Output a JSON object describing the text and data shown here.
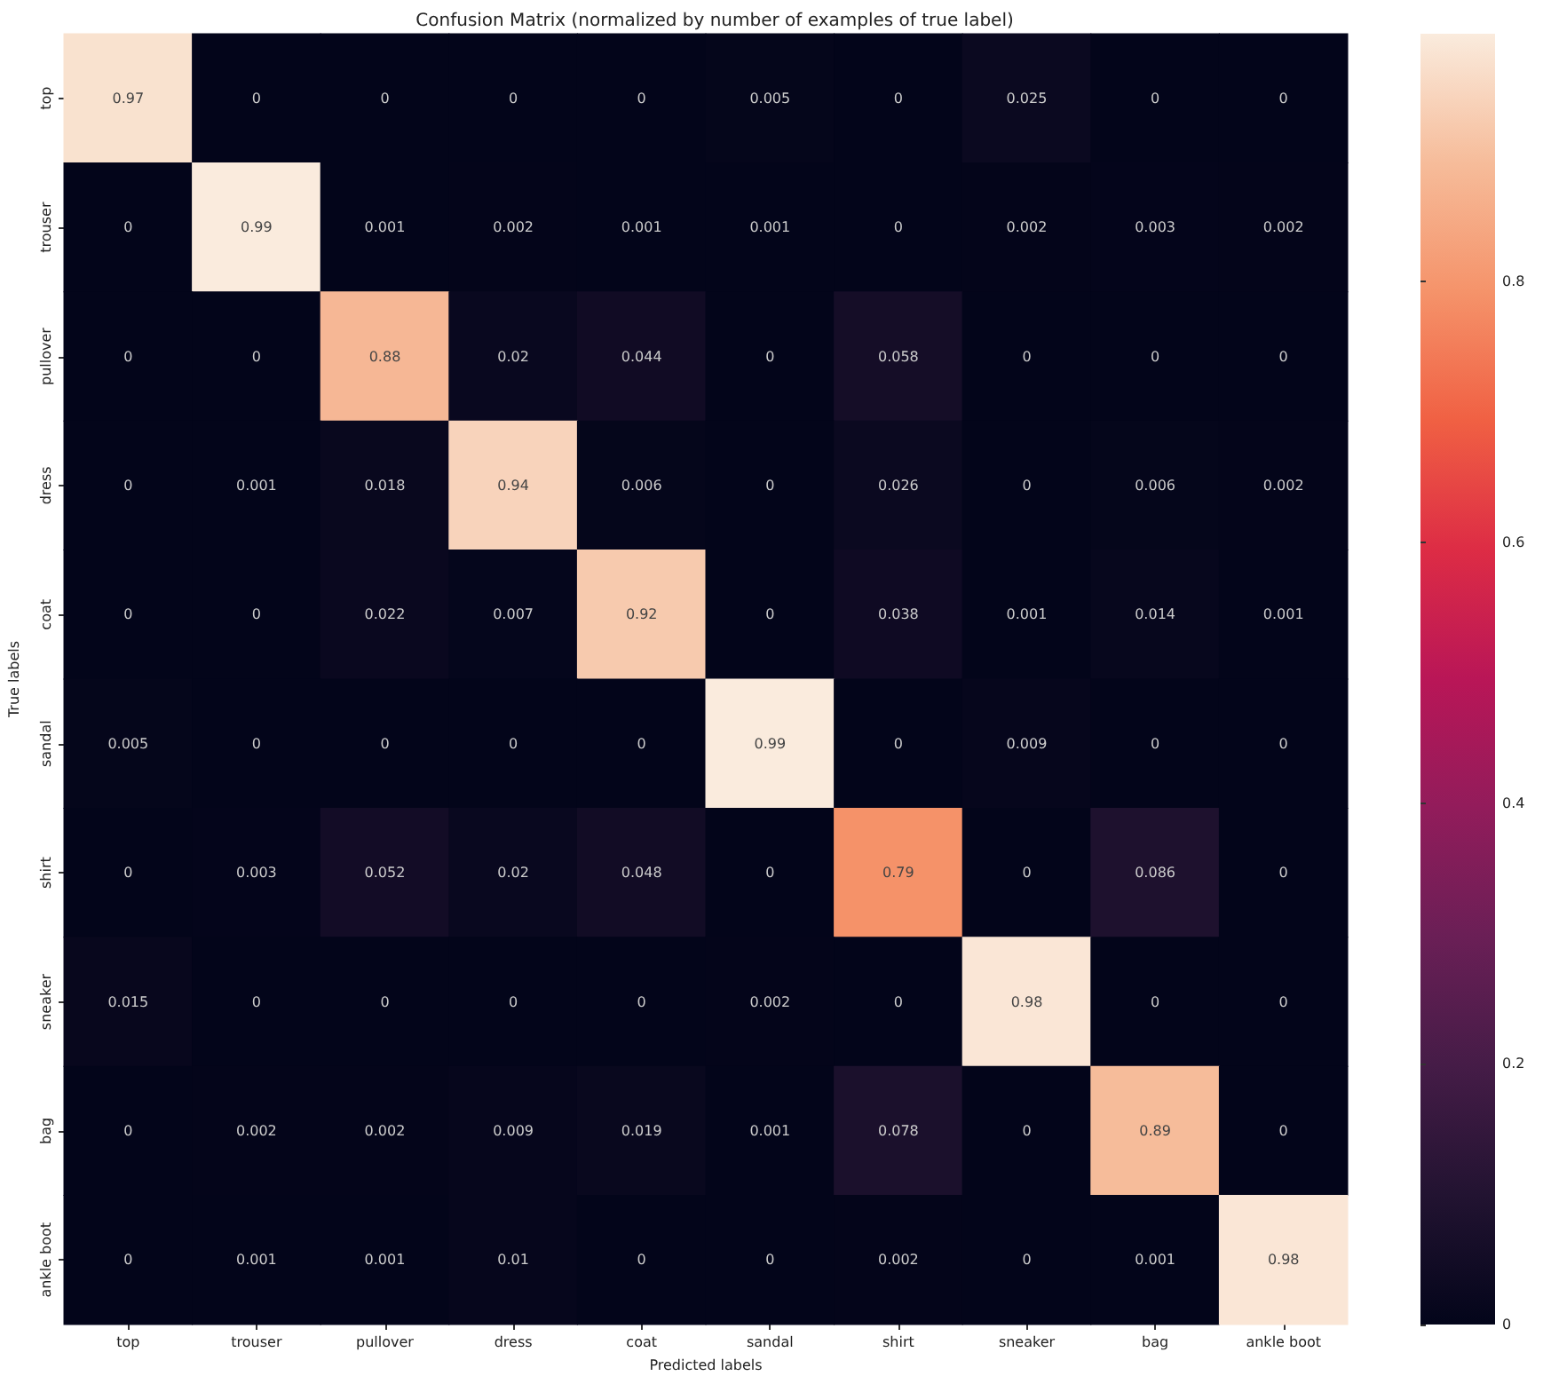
{
  "chart_data": {
    "type": "heatmap",
    "title": "Confusion Matrix (normalized by number of examples of true label)",
    "xlabel": "Predicted labels",
    "ylabel": "True labels",
    "categories": [
      "top",
      "trouser",
      "pullover",
      "dress",
      "coat",
      "sandal",
      "shirt",
      "sneaker",
      "bag",
      "ankle boot"
    ],
    "y_categories": [
      "top",
      "trouser",
      "pullover",
      "dress",
      "coat",
      "sandal",
      "shirt",
      "sneaker",
      "bag",
      "ankle boot"
    ],
    "cells": [
      [
        0.97,
        0,
        0,
        0,
        0,
        0.005,
        0,
        0.025,
        0,
        0
      ],
      [
        0,
        0.99,
        0.001,
        0.002,
        0.001,
        0.001,
        0,
        0.002,
        0.003,
        0.002
      ],
      [
        0,
        0,
        0.88,
        0.02,
        0.044,
        0,
        0.058,
        0,
        0,
        0
      ],
      [
        0,
        0.001,
        0.018,
        0.94,
        0.006,
        0,
        0.026,
        0,
        0.006,
        0.002
      ],
      [
        0,
        0,
        0.022,
        0.007,
        0.92,
        0,
        0.038,
        0.001,
        0.014,
        0.001
      ],
      [
        0.005,
        0,
        0,
        0,
        0,
        0.99,
        0,
        0.009,
        0,
        0
      ],
      [
        0,
        0.003,
        0.052,
        0.02,
        0.048,
        0,
        0.79,
        0,
        0.086,
        0
      ],
      [
        0.015,
        0,
        0,
        0,
        0,
        0.002,
        0,
        0.98,
        0,
        0
      ],
      [
        0,
        0.002,
        0.002,
        0.009,
        0.019,
        0.001,
        0.078,
        0,
        0.89,
        0
      ],
      [
        0,
        0.001,
        0.001,
        0.01,
        0,
        0,
        0.002,
        0,
        0.001,
        0.98
      ]
    ],
    "data_labels": true,
    "clim": [
      0,
      0.99
    ],
    "cticks": [
      0,
      0.2,
      0.4,
      0.6,
      0.8
    ]
  }
}
